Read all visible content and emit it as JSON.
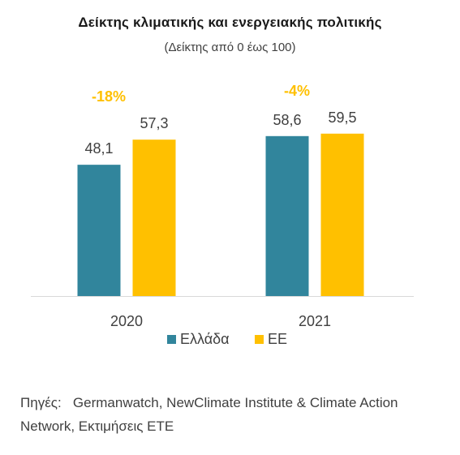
{
  "chart_data": {
    "type": "bar",
    "title": "Δείκτης κλιματικής και ενεργειακής πολιτικής",
    "subtitle": "(Δείκτης από 0 έως 100)",
    "categories": [
      "2020",
      "2021"
    ],
    "series": [
      {
        "name": "Ελλάδα",
        "values": [
          48.1,
          58.6
        ],
        "labels": [
          "48,1",
          "58,6"
        ],
        "color": "#31859C"
      },
      {
        "name": "ΕΕ",
        "values": [
          57.3,
          59.5
        ],
        "labels": [
          "57,3",
          "59,5"
        ],
        "color": "#FFC000"
      }
    ],
    "annotations": [
      "-18%",
      "-4%"
    ],
    "annotation_color": "#FFC000",
    "ylim": [
      0,
      70
    ],
    "grid": false,
    "legend": "bottom"
  },
  "source": {
    "label": "Πηγές:",
    "text": "Germanwatch, NewClimate Institute & Climate Action Network, Εκτιμήσεις ΕΤΕ"
  }
}
